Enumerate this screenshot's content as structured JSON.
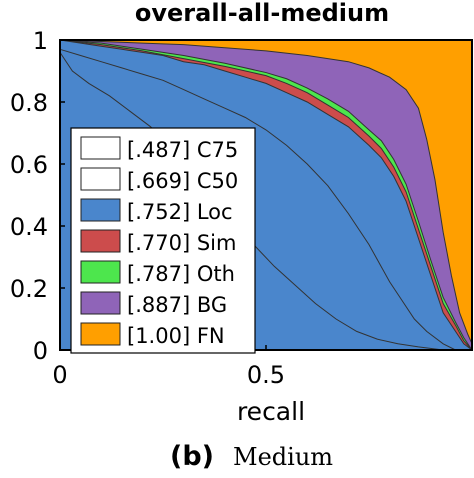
{
  "chart_data": {
    "type": "area",
    "title": "overall-all-medium",
    "xlabel": "recall",
    "ylabel": "",
    "xlim": [
      0,
      1
    ],
    "ylim": [
      0,
      1
    ],
    "xticks": [
      "0",
      "0.5"
    ],
    "yticks": [
      "0",
      "0.2",
      "0.4",
      "0.6",
      "0.8",
      "1"
    ],
    "legend_position": "bottom-left",
    "series": [
      {
        "name": "[.487] C75",
        "color": "#ffffff",
        "points": [
          [
            0,
            0.96
          ],
          [
            0.03,
            0.9
          ],
          [
            0.07,
            0.86
          ],
          [
            0.12,
            0.82
          ],
          [
            0.17,
            0.77
          ],
          [
            0.22,
            0.72
          ],
          [
            0.27,
            0.65
          ],
          [
            0.32,
            0.57
          ],
          [
            0.37,
            0.49
          ],
          [
            0.42,
            0.41
          ],
          [
            0.47,
            0.34
          ],
          [
            0.52,
            0.27
          ],
          [
            0.57,
            0.21
          ],
          [
            0.62,
            0.15
          ],
          [
            0.67,
            0.1
          ],
          [
            0.72,
            0.06
          ],
          [
            0.77,
            0.035
          ],
          [
            0.82,
            0.02
          ],
          [
            0.87,
            0.01
          ],
          [
            0.93,
            0
          ]
        ]
      },
      {
        "name": "[.669] C50",
        "color": "#ffffff",
        "points": [
          [
            0,
            0.97
          ],
          [
            0.05,
            0.95
          ],
          [
            0.1,
            0.93
          ],
          [
            0.15,
            0.91
          ],
          [
            0.2,
            0.89
          ],
          [
            0.25,
            0.87
          ],
          [
            0.3,
            0.84
          ],
          [
            0.35,
            0.81
          ],
          [
            0.4,
            0.78
          ],
          [
            0.45,
            0.75
          ],
          [
            0.5,
            0.71
          ],
          [
            0.55,
            0.66
          ],
          [
            0.6,
            0.6
          ],
          [
            0.65,
            0.53
          ],
          [
            0.7,
            0.44
          ],
          [
            0.75,
            0.34
          ],
          [
            0.8,
            0.22
          ],
          [
            0.83,
            0.16
          ],
          [
            0.86,
            0.1
          ],
          [
            0.89,
            0.06
          ],
          [
            0.93,
            0.02
          ],
          [
            0.96,
            0
          ]
        ]
      },
      {
        "name": "[.752] Loc",
        "color": "#4a86cc",
        "points": [
          [
            0,
            1
          ],
          [
            0.05,
            0.99
          ],
          [
            0.1,
            0.98
          ],
          [
            0.15,
            0.97
          ],
          [
            0.2,
            0.96
          ],
          [
            0.25,
            0.95
          ],
          [
            0.3,
            0.93
          ],
          [
            0.35,
            0.92
          ],
          [
            0.4,
            0.9
          ],
          [
            0.45,
            0.88
          ],
          [
            0.5,
            0.86
          ],
          [
            0.55,
            0.83
          ],
          [
            0.6,
            0.8
          ],
          [
            0.65,
            0.76
          ],
          [
            0.7,
            0.72
          ],
          [
            0.75,
            0.66
          ],
          [
            0.78,
            0.62
          ],
          [
            0.81,
            0.56
          ],
          [
            0.84,
            0.48
          ],
          [
            0.87,
            0.36
          ],
          [
            0.9,
            0.24
          ],
          [
            0.93,
            0.12
          ],
          [
            0.96,
            0.06
          ],
          [
            0.98,
            0.02
          ],
          [
            1,
            0
          ]
        ]
      },
      {
        "name": "[.770] Sim",
        "color": "#cc4c4c",
        "points": [
          [
            0,
            1
          ],
          [
            0.1,
            0.985
          ],
          [
            0.2,
            0.965
          ],
          [
            0.3,
            0.94
          ],
          [
            0.4,
            0.915
          ],
          [
            0.5,
            0.885
          ],
          [
            0.55,
            0.86
          ],
          [
            0.6,
            0.83
          ],
          [
            0.65,
            0.79
          ],
          [
            0.7,
            0.75
          ],
          [
            0.75,
            0.69
          ],
          [
            0.78,
            0.65
          ],
          [
            0.81,
            0.59
          ],
          [
            0.84,
            0.51
          ],
          [
            0.87,
            0.39
          ],
          [
            0.9,
            0.27
          ],
          [
            0.93,
            0.15
          ],
          [
            0.96,
            0.08
          ],
          [
            0.98,
            0.03
          ],
          [
            1,
            0
          ]
        ]
      },
      {
        "name": "[.787] Oth",
        "color": "#4de64d",
        "points": [
          [
            0,
            1
          ],
          [
            0.1,
            0.99
          ],
          [
            0.2,
            0.97
          ],
          [
            0.3,
            0.95
          ],
          [
            0.4,
            0.925
          ],
          [
            0.5,
            0.895
          ],
          [
            0.55,
            0.875
          ],
          [
            0.6,
            0.845
          ],
          [
            0.65,
            0.81
          ],
          [
            0.7,
            0.77
          ],
          [
            0.75,
            0.71
          ],
          [
            0.78,
            0.675
          ],
          [
            0.81,
            0.615
          ],
          [
            0.84,
            0.535
          ],
          [
            0.87,
            0.415
          ],
          [
            0.9,
            0.29
          ],
          [
            0.93,
            0.17
          ],
          [
            0.96,
            0.09
          ],
          [
            0.98,
            0.04
          ],
          [
            1,
            0
          ]
        ]
      },
      {
        "name": "[.887] BG",
        "color": "#8f64b8",
        "points": [
          [
            0,
            1
          ],
          [
            0.1,
            0.995
          ],
          [
            0.2,
            0.99
          ],
          [
            0.3,
            0.985
          ],
          [
            0.4,
            0.975
          ],
          [
            0.5,
            0.965
          ],
          [
            0.6,
            0.95
          ],
          [
            0.7,
            0.93
          ],
          [
            0.75,
            0.91
          ],
          [
            0.8,
            0.88
          ],
          [
            0.84,
            0.84
          ],
          [
            0.87,
            0.78
          ],
          [
            0.89,
            0.68
          ],
          [
            0.91,
            0.55
          ],
          [
            0.93,
            0.38
          ],
          [
            0.95,
            0.24
          ],
          [
            0.97,
            0.12
          ],
          [
            0.99,
            0.05
          ],
          [
            1,
            0.02
          ]
        ]
      },
      {
        "name": "[1.00] FN",
        "color": "#ff9f00",
        "points": [
          [
            0,
            1
          ],
          [
            1,
            1
          ]
        ]
      }
    ]
  },
  "caption": {
    "label": "(b)",
    "text": "Medium"
  }
}
